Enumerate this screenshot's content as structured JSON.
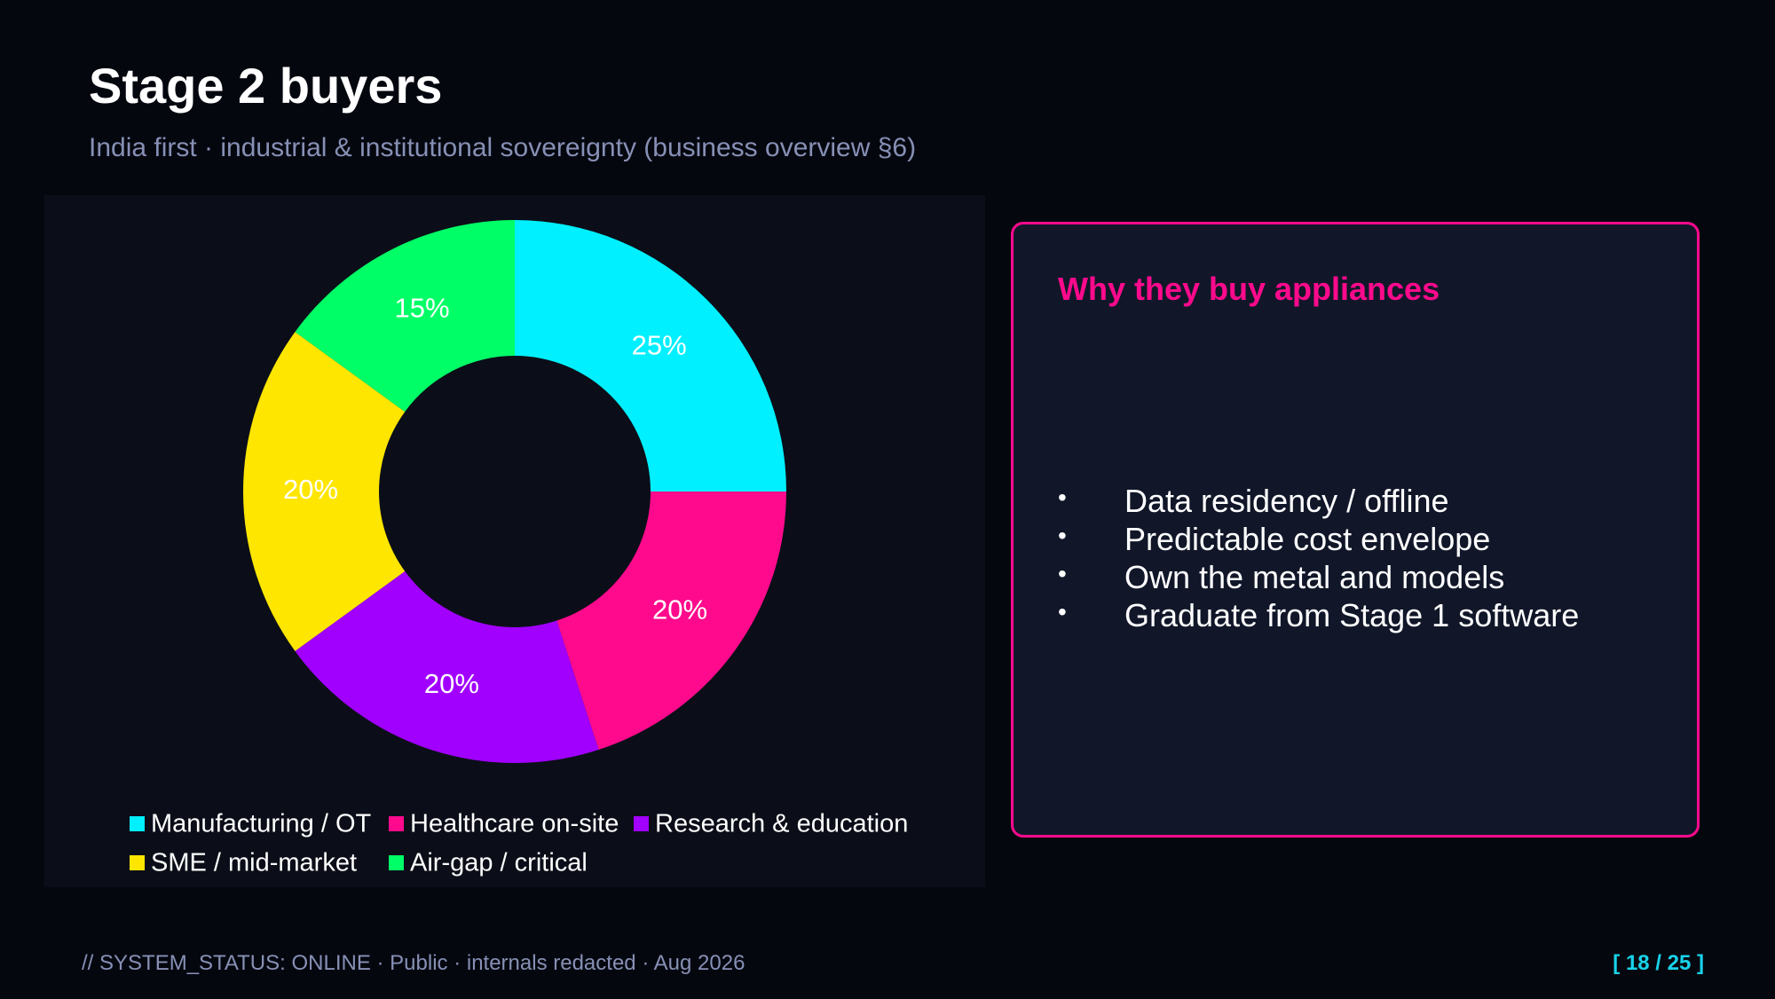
{
  "header": {
    "title": "Stage 2 buyers",
    "subtitle": "India first · industrial & institutional sovereignty (business overview §6)"
  },
  "chart_data": {
    "type": "pie",
    "donut": true,
    "categories": [
      "Manufacturing / OT",
      "Healthcare on-site",
      "Research & education",
      "SME / mid-market",
      "Air-gap / critical"
    ],
    "values": [
      25,
      20,
      20,
      20,
      15
    ],
    "value_labels": [
      "25%",
      "20%",
      "20%",
      "20%",
      "15%"
    ],
    "colors": [
      "#00f0ff",
      "#ff0a8c",
      "#a100ff",
      "#ffe600",
      "#00ff66"
    ],
    "legend": "bottom"
  },
  "panel": {
    "heading": "Why they buy appliances",
    "bullets": [
      "Data residency / offline",
      "Predictable cost envelope",
      "Own the metal and models",
      "Graduate from Stage 1 software"
    ]
  },
  "footer": {
    "status": "// SYSTEM_STATUS: ONLINE  ·  Public · internals redacted · Aug 2026",
    "page": "[ 18 / 25 ]"
  }
}
